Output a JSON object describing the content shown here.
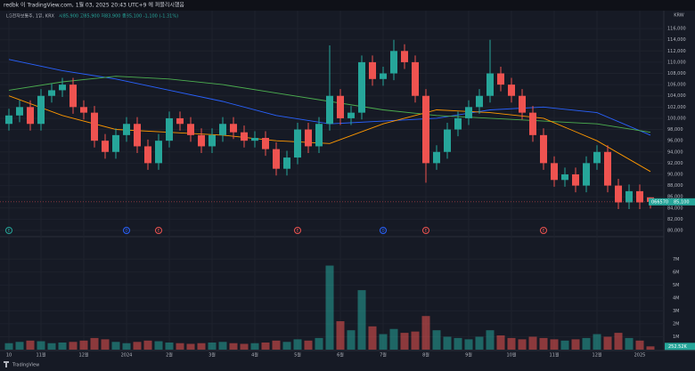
{
  "header": {
    "title": "redbk 이 TradingView.com, 1월 03, 2025 20:43 UTC+9 에 퍼블리시했음",
    "symbol": "LG전자보통주, 1일, KRX",
    "ohlc": "시85,900 고85,900 저83,900 종85,100 -1,100 (-1.31%)",
    "footer": "TradingView"
  },
  "chart_data": {
    "type": "candlestick",
    "currency": "KRW",
    "categories": [
      "10",
      null,
      null,
      "11월",
      null,
      null,
      null,
      "12월",
      null,
      null,
      null,
      "2024",
      null,
      null,
      null,
      "2월",
      null,
      null,
      null,
      "3월",
      null,
      null,
      null,
      "4월",
      null,
      null,
      null,
      "5월",
      null,
      null,
      null,
      "6월",
      null,
      null,
      null,
      "7월",
      null,
      null,
      null,
      "8월",
      null,
      null,
      null,
      "9월",
      null,
      null,
      null,
      "10월",
      null,
      null,
      null,
      "11월",
      null,
      null,
      null,
      "12월",
      null,
      null,
      null,
      "2025",
      null
    ],
    "open": [
      99000,
      100500,
      102000,
      99000,
      104000,
      105000,
      106000,
      102000,
      101000,
      96000,
      94000,
      97000,
      99000,
      95000,
      92000,
      96000,
      100000,
      99000,
      97000,
      95000,
      97000,
      99000,
      97500,
      96000,
      96500,
      94500,
      91000,
      93000,
      98000,
      95000,
      99000,
      104000,
      100000,
      101000,
      110000,
      107000,
      108000,
      112000,
      110000,
      104000,
      92000,
      94000,
      98000,
      100000,
      102000,
      104000,
      108000,
      106000,
      104000,
      101000,
      97000,
      92000,
      89000,
      90000,
      88000,
      92000,
      94000,
      88000,
      85000,
      87000,
      85900
    ],
    "high": [
      101700,
      103200,
      103200,
      105200,
      106200,
      107200,
      107200,
      103200,
      102200,
      97200,
      98200,
      100200,
      100200,
      96200,
      97200,
      101200,
      101200,
      100200,
      98200,
      98200,
      100200,
      100200,
      98700,
      97700,
      97700,
      95700,
      94200,
      99200,
      99200,
      100200,
      113000,
      105200,
      102200,
      111200,
      111200,
      109200,
      114000,
      113200,
      111200,
      105200,
      95200,
      99200,
      101200,
      103200,
      105200,
      114000,
      109200,
      107200,
      105200,
      102200,
      98200,
      93200,
      91200,
      91200,
      93200,
      95200,
      95200,
      89200,
      88200,
      88200,
      85900
    ],
    "low": [
      97800,
      99300,
      97800,
      97800,
      102800,
      103800,
      100800,
      99800,
      94800,
      92800,
      92800,
      95800,
      93800,
      90800,
      90800,
      94800,
      97800,
      95800,
      93800,
      93800,
      95800,
      96300,
      94800,
      94800,
      93300,
      89800,
      89800,
      91800,
      93800,
      93800,
      97800,
      98800,
      98800,
      99800,
      105800,
      105800,
      106800,
      108800,
      102800,
      88500,
      90800,
      92800,
      96800,
      98800,
      100800,
      102800,
      104800,
      102800,
      99800,
      95800,
      90800,
      87800,
      87800,
      86800,
      86800,
      90800,
      86800,
      83800,
      83800,
      83800,
      83900
    ],
    "close": [
      100500,
      102000,
      99000,
      104000,
      105000,
      106000,
      102000,
      101000,
      96000,
      94000,
      97000,
      99000,
      95000,
      92000,
      96000,
      100000,
      99000,
      97000,
      95000,
      97000,
      99000,
      97500,
      96000,
      96500,
      94500,
      91000,
      93000,
      98000,
      95000,
      99000,
      104000,
      100000,
      101000,
      110000,
      107000,
      108000,
      112000,
      110000,
      104000,
      92000,
      94000,
      98000,
      100000,
      102000,
      104000,
      108000,
      106000,
      104000,
      101000,
      97000,
      92000,
      89000,
      90000,
      88000,
      92000,
      94000,
      88000,
      85000,
      87000,
      85000,
      85100
    ],
    "volume": [
      500000,
      600000,
      700000,
      650000,
      500000,
      550000,
      600000,
      700000,
      900000,
      800000,
      600000,
      500000,
      600000,
      700000,
      650000,
      550000,
      500000,
      450000,
      500000,
      550000,
      600000,
      500000,
      450000,
      500000,
      550000,
      700000,
      600000,
      800000,
      700000,
      900000,
      6500000,
      2200000,
      1500000,
      4600000,
      1800000,
      1200000,
      1600000,
      1300000,
      1400000,
      2600000,
      1500000,
      1000000,
      900000,
      800000,
      1000000,
      1500000,
      1100000,
      900000,
      800000,
      1000000,
      900000,
      800000,
      700000,
      800000,
      900000,
      1200000,
      1000000,
      1300000,
      900000,
      700000,
      252520
    ],
    "up_color": "#26a69a",
    "down_color": "#ef5350",
    "lines": [
      {
        "color": "#2962ff",
        "x": [
          0,
          5,
          10,
          15,
          20,
          25,
          30,
          35,
          40,
          45,
          50,
          55,
          60
        ],
        "values": [
          110500,
          108500,
          107000,
          105000,
          103000,
          100500,
          99000,
          99500,
          100000,
          101500,
          102000,
          101000,
          97000
        ]
      },
      {
        "color": "#4caf50",
        "x": [
          0,
          5,
          10,
          15,
          20,
          25,
          30,
          35,
          40,
          45,
          50,
          55,
          60
        ],
        "values": [
          105000,
          106500,
          107500,
          107000,
          106000,
          104500,
          103000,
          101500,
          100500,
          100000,
          99500,
          99000,
          97500
        ]
      },
      {
        "color": "#ff9800",
        "x": [
          0,
          5,
          10,
          15,
          20,
          25,
          30,
          35,
          40,
          45,
          50,
          55,
          60
        ],
        "values": [
          104000,
          100500,
          98000,
          97500,
          97000,
          96000,
          95500,
          99000,
          101500,
          101000,
          100000,
          96000,
          90500
        ]
      }
    ],
    "events": [
      {
        "label": "E",
        "index": 0,
        "color": "#26a69a"
      },
      {
        "label": "D",
        "index": 11,
        "color": "#2962ff"
      },
      {
        "label": "E",
        "index": 14,
        "color": "#ef5350"
      },
      {
        "label": "E",
        "index": 27,
        "color": "#ef5350"
      },
      {
        "label": "D",
        "index": 35,
        "color": "#2962ff"
      },
      {
        "label": "E",
        "index": 39,
        "color": "#ef5350"
      },
      {
        "label": "E",
        "index": 50,
        "color": "#ef5350"
      }
    ],
    "ylim": [
      79050,
      117600
    ],
    "yticks": [
      {
        "value": 116000,
        "label": "116,000"
      },
      {
        "value": 114000,
        "label": "114,000"
      },
      {
        "value": 112000,
        "label": "112,000"
      },
      {
        "value": 110000,
        "label": "110,000"
      },
      {
        "value": 108000,
        "label": "108,000"
      },
      {
        "value": 106000,
        "label": "106,000"
      },
      {
        "value": 104000,
        "label": "104,000"
      },
      {
        "value": 102000,
        "label": "102,000"
      },
      {
        "value": 100000,
        "label": "100,000"
      },
      {
        "value": 98000,
        "label": "98,000"
      },
      {
        "value": 96000,
        "label": "96,000"
      },
      {
        "value": 94000,
        "label": "94,000"
      },
      {
        "value": 92000,
        "label": "92,000"
      },
      {
        "value": 90000,
        "label": "90,000"
      },
      {
        "value": 88000,
        "label": "88,000"
      },
      {
        "value": 86000,
        "label": "86,000"
      },
      {
        "value": 84000,
        "label": "84,000"
      },
      {
        "value": 82000,
        "label": "82,000"
      },
      {
        "value": 80000,
        "label": "80,000"
      }
    ],
    "volume_ylim": [
      0,
      8600000
    ],
    "volume_ticks": [
      {
        "value": 7000000,
        "label": "7M"
      },
      {
        "value": 6000000,
        "label": "6M"
      },
      {
        "value": 5000000,
        "label": "5M"
      },
      {
        "value": 4000000,
        "label": "4M"
      },
      {
        "value": 3000000,
        "label": "3M"
      },
      {
        "value": 2000000,
        "label": "2M"
      },
      {
        "value": 1000000,
        "label": "1M"
      }
    ],
    "last_price_code": "066570",
    "last_price_label": "85,100",
    "last_volume_label": "252.52K",
    "grid": true
  }
}
